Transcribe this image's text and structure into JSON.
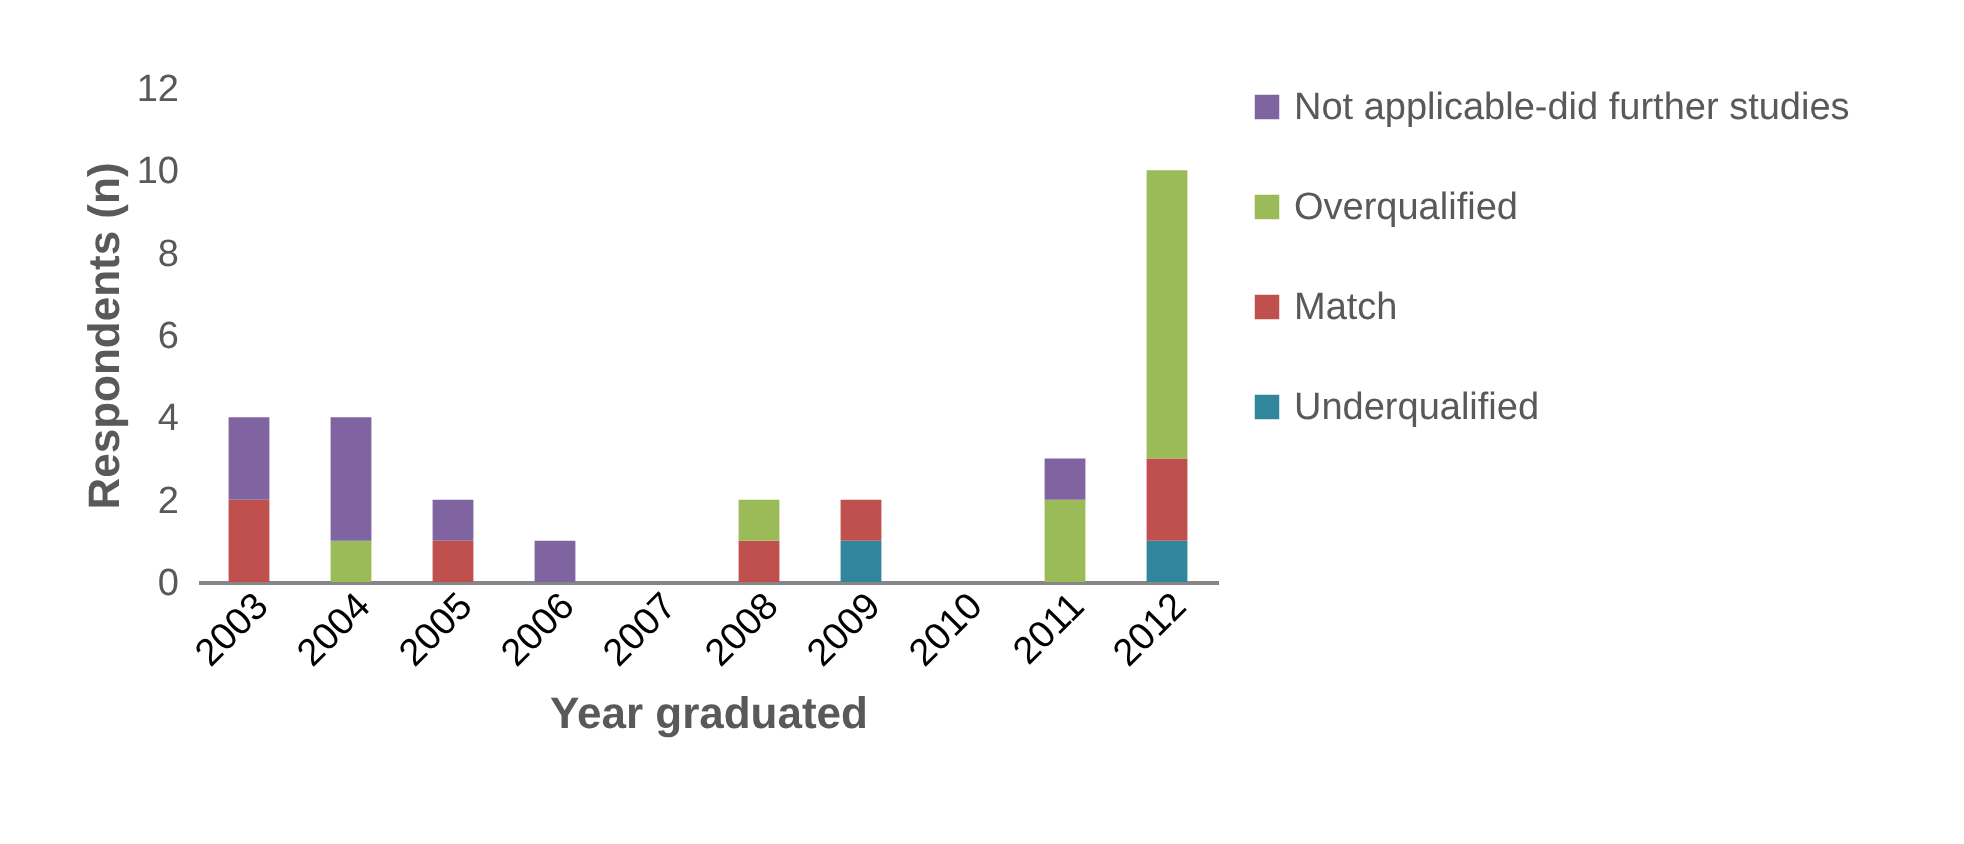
{
  "chart_data": {
    "type": "bar",
    "stacked": true,
    "xlabel": "Year graduated",
    "ylabel": "Respondents (n)",
    "categories": [
      "2003",
      "2004",
      "2005",
      "2006",
      "2007",
      "2008",
      "2009",
      "2010",
      "2011",
      "2012"
    ],
    "series": [
      {
        "name": "Underqualified",
        "color": "#31859c",
        "values": [
          0,
          0,
          0,
          0,
          0,
          0,
          1,
          0,
          0,
          1
        ]
      },
      {
        "name": "Match",
        "color": "#c0504d",
        "values": [
          2,
          0,
          1,
          0,
          0,
          1,
          1,
          0,
          0,
          2
        ]
      },
      {
        "name": "Overqualified",
        "color": "#9bbb59",
        "values": [
          0,
          1,
          0,
          0,
          0,
          1,
          0,
          0,
          2,
          7
        ]
      },
      {
        "name": "Not applicable-did further studies",
        "color": "#8064a2",
        "values": [
          2,
          3,
          1,
          1,
          0,
          0,
          0,
          0,
          1,
          0
        ]
      }
    ],
    "ylim": [
      0,
      12
    ],
    "yticks": [
      0,
      2,
      4,
      6,
      8,
      10,
      12
    ],
    "grid": false,
    "legend": "right"
  }
}
